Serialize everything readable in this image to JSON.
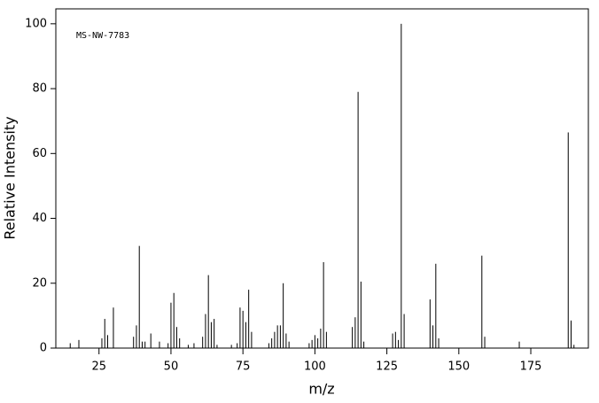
{
  "chart_data": {
    "type": "stem",
    "annotation": "MS-NW-7783",
    "xlabel": "m/z",
    "ylabel": "Relative Intensity",
    "x": [
      15,
      18,
      26,
      27,
      28,
      30,
      37,
      38,
      39,
      40,
      41,
      43,
      46,
      49,
      50,
      51,
      52,
      53,
      56,
      58,
      61,
      62,
      63,
      64,
      65,
      66,
      71,
      73,
      74,
      75,
      76,
      77,
      78,
      84,
      85,
      86,
      87,
      88,
      89,
      90,
      91,
      98,
      99,
      100,
      101,
      102,
      103,
      104,
      113,
      114,
      115,
      116,
      117,
      127,
      128,
      129,
      130,
      131,
      140,
      141,
      142,
      143,
      158,
      159,
      171,
      188,
      189,
      190
    ],
    "values": [
      1.5,
      2.5,
      3,
      9,
      4,
      12.5,
      3.5,
      7,
      31.5,
      2,
      2,
      4.5,
      2,
      1.5,
      14,
      17,
      6.5,
      3,
      1,
      1.5,
      3.5,
      10.5,
      22.5,
      8,
      9,
      1,
      1,
      1.5,
      12.5,
      11.5,
      8,
      18,
      5,
      1.5,
      3,
      5,
      7,
      7,
      20,
      4.5,
      2,
      1.5,
      2.5,
      4,
      3,
      6,
      26.5,
      5,
      6.5,
      9.5,
      79,
      20.5,
      2,
      4.5,
      5,
      2.5,
      100,
      10.5,
      15,
      7,
      26,
      3,
      28.5,
      3.5,
      2,
      66.5,
      8.5,
      1
    ],
    "color": "#000000",
    "xlim": [
      10,
      195
    ],
    "xticks": [
      25,
      50,
      75,
      100,
      125,
      150,
      175
    ],
    "ylim": [
      0,
      104.6
    ],
    "yticks": [
      0,
      20,
      40,
      60,
      80,
      100
    ],
    "grid": false
  }
}
